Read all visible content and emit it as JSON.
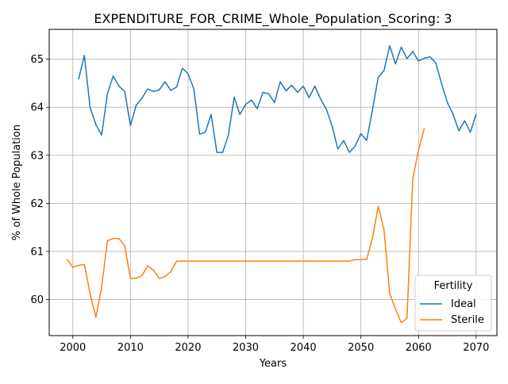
{
  "chart_data": {
    "type": "line",
    "title": "EXPENDITURE_FOR_CRIME_Whole_Population_Scoring: 3",
    "xlabel": "Years",
    "ylabel": "% of Whole Population",
    "xlim": [
      1995.9,
      2073.6
    ],
    "ylim": [
      59.25,
      65.62
    ],
    "xticks": [
      2000,
      2010,
      2020,
      2030,
      2040,
      2050,
      2060,
      2070
    ],
    "yticks": [
      60,
      61,
      62,
      63,
      64,
      65
    ],
    "grid": true,
    "legend": {
      "title": "Fertility",
      "placement": "lower right"
    },
    "series": [
      {
        "name": "Ideal",
        "color": "#1f77b4",
        "x": [
          2001,
          2002,
          2003,
          2004,
          2005,
          2006,
          2007,
          2008,
          2009,
          2010,
          2011,
          2012,
          2013,
          2014,
          2015,
          2016,
          2017,
          2018,
          2019,
          2020,
          2021,
          2022,
          2023,
          2024,
          2025,
          2026,
          2027,
          2028,
          2029,
          2030,
          2031,
          2032,
          2033,
          2034,
          2035,
          2036,
          2037,
          2038,
          2039,
          2040,
          2041,
          2042,
          2043,
          2044,
          2045,
          2046,
          2047,
          2048,
          2049,
          2050,
          2051,
          2052,
          2053,
          2054,
          2055,
          2056,
          2057,
          2058,
          2059,
          2060,
          2061,
          2062,
          2063,
          2064,
          2065,
          2066,
          2067,
          2068,
          2069,
          2070
        ],
        "y": [
          64.58,
          65.08,
          63.99,
          63.64,
          63.42,
          64.28,
          64.65,
          64.44,
          64.33,
          63.62,
          64.04,
          64.19,
          64.38,
          64.33,
          64.36,
          64.53,
          64.35,
          64.42,
          64.81,
          64.7,
          64.38,
          63.44,
          63.48,
          63.85,
          63.06,
          63.06,
          63.42,
          64.21,
          63.85,
          64.06,
          64.15,
          63.97,
          64.31,
          64.28,
          64.1,
          64.53,
          64.34,
          64.46,
          64.31,
          64.44,
          64.2,
          64.44,
          64.17,
          63.96,
          63.61,
          63.13,
          63.31,
          63.06,
          63.19,
          63.45,
          63.31,
          63.94,
          64.62,
          64.76,
          65.28,
          64.9,
          65.25,
          65.01,
          65.16,
          64.96,
          65.02,
          65.05,
          64.92,
          64.49,
          64.1,
          63.85,
          63.51,
          63.72,
          63.48,
          63.86
        ]
      },
      {
        "name": "Sterile",
        "color": "#ff7f0e",
        "x": [
          1999,
          2000,
          2001,
          2002,
          2003,
          2004,
          2005,
          2006,
          2007,
          2008,
          2009,
          2010,
          2011,
          2012,
          2013,
          2014,
          2015,
          2016,
          2017,
          2018,
          2019,
          2020,
          2021,
          2022,
          2023,
          2024,
          2025,
          2026,
          2027,
          2028,
          2029,
          2030,
          2031,
          2032,
          2033,
          2034,
          2035,
          2036,
          2037,
          2038,
          2039,
          2040,
          2041,
          2042,
          2043,
          2044,
          2045,
          2046,
          2047,
          2048,
          2049,
          2050,
          2051,
          2052,
          2053,
          2054,
          2055,
          2056,
          2057,
          2058,
          2059,
          2060,
          2061
        ],
        "y": [
          60.84,
          60.67,
          60.71,
          60.73,
          60.12,
          59.63,
          60.26,
          61.22,
          61.27,
          61.27,
          61.12,
          60.44,
          60.44,
          60.5,
          60.7,
          60.61,
          60.44,
          60.48,
          60.58,
          60.8,
          60.8,
          60.8,
          60.8,
          60.8,
          60.8,
          60.8,
          60.8,
          60.8,
          60.8,
          60.8,
          60.8,
          60.8,
          60.8,
          60.8,
          60.8,
          60.8,
          60.8,
          60.8,
          60.8,
          60.8,
          60.8,
          60.8,
          60.8,
          60.8,
          60.8,
          60.8,
          60.8,
          60.8,
          60.8,
          60.8,
          60.83,
          60.83,
          60.84,
          61.27,
          61.94,
          61.46,
          60.13,
          59.8,
          59.52,
          59.61,
          62.51,
          63.11,
          63.56
        ]
      }
    ]
  }
}
